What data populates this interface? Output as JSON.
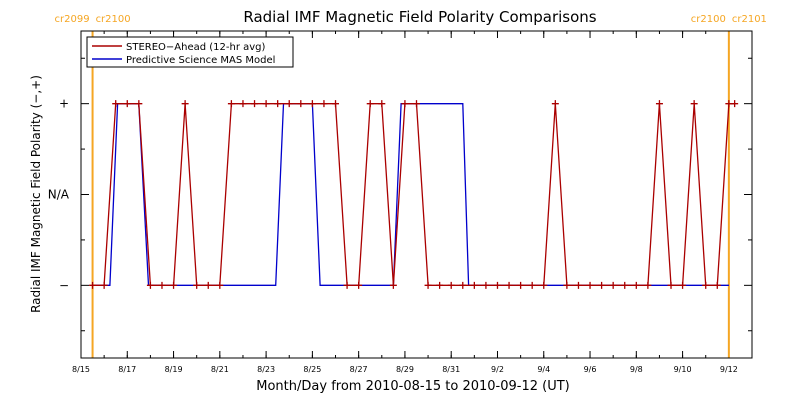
{
  "chart_data": {
    "type": "line",
    "title": "Radial IMF Magnetic Field Polarity Comparisons",
    "xlabel": "Month/Day from 2010-08-15 to 2010-09-12 (UT)",
    "ylabel": "Radial IMF Magnetic Field Polarity (−,+)",
    "xlim": [
      "2010-08-15",
      "2010-09-13"
    ],
    "ylim": [
      -1.8,
      1.8
    ],
    "x_ticks": [
      "8/15",
      "8/17",
      "8/19",
      "8/21",
      "8/23",
      "8/25",
      "8/27",
      "8/29",
      "8/31",
      "9/2",
      "9/4",
      "9/6",
      "9/8",
      "9/10",
      "9/12"
    ],
    "y_ticks": [
      {
        "value": 1,
        "label": "+"
      },
      {
        "value": 0,
        "label": "N/A"
      },
      {
        "value": -1,
        "label": "−"
      }
    ],
    "carrington_markers": [
      {
        "date": "2010-08-15 12:00",
        "left_label": "cr2099",
        "right_label": "cr2100",
        "color": "#f5a623"
      },
      {
        "date": "2010-09-12 00:00",
        "left_label": "cr2100",
        "right_label": "cr2101",
        "color": "#f5a623"
      }
    ],
    "legend": {
      "position": "top-left"
    },
    "series": [
      {
        "name": "STEREO−Ahead (12-hr avg)",
        "color": "#aa0000",
        "markers": true,
        "points": [
          [
            "2010-08-15 12:00",
            -1
          ],
          [
            "2010-08-16 00:00",
            -1
          ],
          [
            "2010-08-16 12:00",
            1
          ],
          [
            "2010-08-17 00:00",
            1
          ],
          [
            "2010-08-17 12:00",
            1
          ],
          [
            "2010-08-18 00:00",
            -1
          ],
          [
            "2010-08-18 12:00",
            -1
          ],
          [
            "2010-08-19 00:00",
            -1
          ],
          [
            "2010-08-19 12:00",
            1
          ],
          [
            "2010-08-20 00:00",
            -1
          ],
          [
            "2010-08-20 12:00",
            -1
          ],
          [
            "2010-08-21 00:00",
            -1
          ],
          [
            "2010-08-21 12:00",
            1
          ],
          [
            "2010-08-22 00:00",
            1
          ],
          [
            "2010-08-22 12:00",
            1
          ],
          [
            "2010-08-23 00:00",
            1
          ],
          [
            "2010-08-23 12:00",
            1
          ],
          [
            "2010-08-24 00:00",
            1
          ],
          [
            "2010-08-24 12:00",
            1
          ],
          [
            "2010-08-25 00:00",
            1
          ],
          [
            "2010-08-25 12:00",
            1
          ],
          [
            "2010-08-26 00:00",
            1
          ],
          [
            "2010-08-26 12:00",
            -1
          ],
          [
            "2010-08-27 00:00",
            -1
          ],
          [
            "2010-08-27 12:00",
            1
          ],
          [
            "2010-08-28 00:00",
            1
          ],
          [
            "2010-08-28 12:00",
            -1
          ],
          [
            "2010-08-29 00:00",
            1
          ],
          [
            "2010-08-29 12:00",
            1
          ],
          [
            "2010-08-30 00:00",
            -1
          ],
          [
            "2010-08-30 12:00",
            -1
          ],
          [
            "2010-08-31 00:00",
            -1
          ],
          [
            "2010-08-31 12:00",
            -1
          ],
          [
            "2010-09-01 00:00",
            -1
          ],
          [
            "2010-09-01 12:00",
            -1
          ],
          [
            "2010-09-02 00:00",
            -1
          ],
          [
            "2010-09-02 12:00",
            -1
          ],
          [
            "2010-09-03 00:00",
            -1
          ],
          [
            "2010-09-03 12:00",
            -1
          ],
          [
            "2010-09-04 00:00",
            -1
          ],
          [
            "2010-09-04 12:00",
            1
          ],
          [
            "2010-09-05 00:00",
            -1
          ],
          [
            "2010-09-05 12:00",
            -1
          ],
          [
            "2010-09-06 00:00",
            -1
          ],
          [
            "2010-09-06 12:00",
            -1
          ],
          [
            "2010-09-07 00:00",
            -1
          ],
          [
            "2010-09-07 12:00",
            -1
          ],
          [
            "2010-09-08 00:00",
            -1
          ],
          [
            "2010-09-08 12:00",
            -1
          ],
          [
            "2010-09-09 00:00",
            1
          ],
          [
            "2010-09-09 12:00",
            -1
          ],
          [
            "2010-09-10 00:00",
            -1
          ],
          [
            "2010-09-10 12:00",
            1
          ],
          [
            "2010-09-11 00:00",
            -1
          ],
          [
            "2010-09-11 12:00",
            -1
          ],
          [
            "2010-09-12 00:00",
            1
          ],
          [
            "2010-09-12 06:00",
            1
          ]
        ]
      },
      {
        "name": "Predictive Science MAS Model",
        "color": "#0000cc",
        "markers": false,
        "points": [
          [
            "2010-08-15 12:00",
            -1
          ],
          [
            "2010-08-16 06:00",
            -1
          ],
          [
            "2010-08-16 14:00",
            1
          ],
          [
            "2010-08-17 12:00",
            1
          ],
          [
            "2010-08-17 22:00",
            -1
          ],
          [
            "2010-08-23 10:00",
            -1
          ],
          [
            "2010-08-23 18:00",
            1
          ],
          [
            "2010-08-25 00:00",
            1
          ],
          [
            "2010-08-25 08:00",
            -1
          ],
          [
            "2010-08-28 12:00",
            -1
          ],
          [
            "2010-08-28 20:00",
            1
          ],
          [
            "2010-08-31 12:00",
            1
          ],
          [
            "2010-08-31 18:00",
            -1
          ],
          [
            "2010-09-12 00:00",
            -1
          ]
        ]
      }
    ]
  }
}
